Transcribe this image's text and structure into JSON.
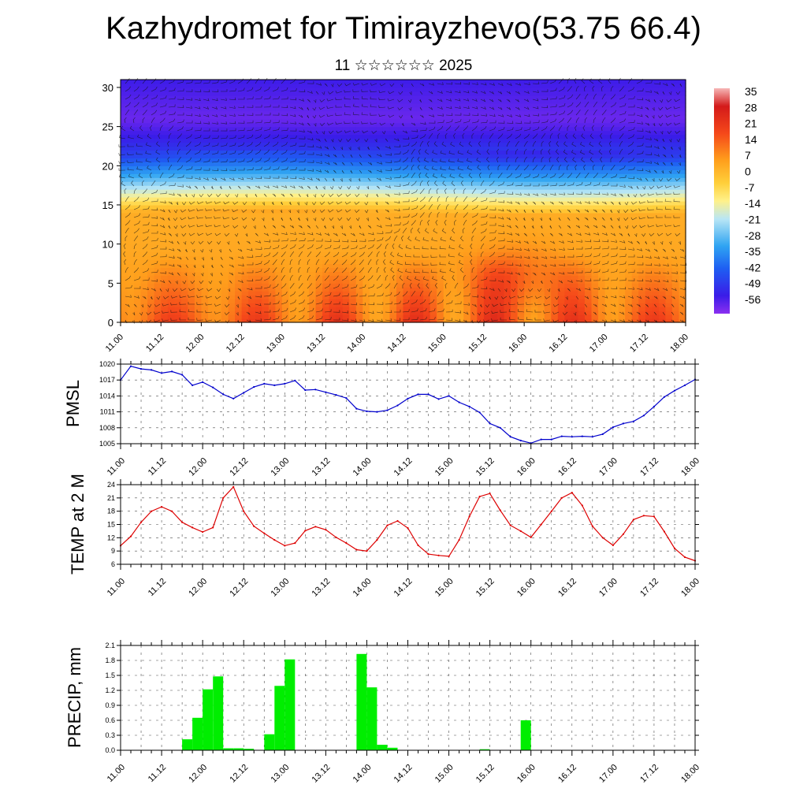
{
  "title": "Kazhydromet for Timirayzhevo(53.75 66.4)",
  "subtitle": "11 ☆☆☆☆☆☆ 2025",
  "time_labels": [
    "11.00",
    "11.12",
    "12.00",
    "12.12",
    "13.00",
    "13.12",
    "14.00",
    "14.12",
    "15.00",
    "15.12",
    "16.00",
    "16.12",
    "17.00",
    "17.12",
    "18.00"
  ],
  "chart_data": [
    {
      "type": "heatmap",
      "title": "",
      "ylim": [
        0,
        31
      ],
      "y_ticks": [
        "0",
        "5",
        "10",
        "15",
        "20",
        "25",
        "30"
      ],
      "x_ticks": [
        "11.00",
        "11.12",
        "12.00",
        "12.12",
        "13.00",
        "13.12",
        "14.00",
        "14.12",
        "15.00",
        "15.12",
        "16.00",
        "16.12",
        "17.00",
        "17.12",
        "18.00"
      ],
      "colorbar": {
        "labels": [
          "35",
          "28",
          "21",
          "14",
          "7",
          "0",
          "-7",
          "-14",
          "-21",
          "-28",
          "-35",
          "-42",
          "-49",
          "-56"
        ],
        "range": [
          -60,
          38
        ]
      },
      "overlay": "wind barbs"
    },
    {
      "type": "line",
      "ylabel": "PMSL",
      "ylim": [
        1005,
        1020
      ],
      "y_ticks": [
        "1005",
        "1008",
        "1011",
        "1014",
        "1017",
        "1020"
      ],
      "color": "#0000cc",
      "x": [
        0,
        1,
        2,
        3,
        4,
        5,
        6,
        7,
        8,
        9,
        10,
        11,
        12,
        13,
        14,
        15,
        16,
        17,
        18,
        19,
        20,
        21,
        22,
        23,
        24,
        25,
        26,
        27,
        28,
        29,
        30,
        31,
        32,
        33,
        34,
        35,
        36,
        37,
        38,
        39,
        40,
        41,
        42,
        43,
        44,
        45,
        46,
        47,
        48,
        49,
        50,
        51,
        52,
        53,
        54,
        55,
        56
      ],
      "values": [
        1017.0,
        1019.6,
        1019.1,
        1018.9,
        1018.3,
        1018.6,
        1018.0,
        1016.0,
        1016.6,
        1015.6,
        1014.3,
        1013.5,
        1014.6,
        1015.7,
        1016.3,
        1016.0,
        1016.3,
        1016.9,
        1015.1,
        1015.2,
        1014.7,
        1014.2,
        1013.6,
        1011.6,
        1011.1,
        1011.0,
        1011.3,
        1012.2,
        1013.5,
        1014.3,
        1014.3,
        1013.4,
        1014.0,
        1012.8,
        1012.0,
        1010.9,
        1008.8,
        1008.0,
        1006.3,
        1005.6,
        1005.1,
        1005.8,
        1005.8,
        1006.4,
        1006.3,
        1006.4,
        1006.3,
        1006.8,
        1008.1,
        1008.8,
        1009.2,
        1010.3,
        1012.0,
        1013.8,
        1015.0,
        1016.0,
        1017.1
      ]
    },
    {
      "type": "line",
      "ylabel": "TEMP at 2 M",
      "ylim": [
        6,
        24
      ],
      "y_ticks": [
        "6",
        "9",
        "12",
        "15",
        "18",
        "21",
        "24"
      ],
      "color": "#dd0000",
      "x": [
        0,
        1,
        2,
        3,
        4,
        5,
        6,
        7,
        8,
        9,
        10,
        11,
        12,
        13,
        14,
        15,
        16,
        17,
        18,
        19,
        20,
        21,
        22,
        23,
        24,
        25,
        26,
        27,
        28,
        29,
        30,
        31,
        32,
        33,
        34,
        35,
        36,
        37,
        38,
        39,
        40,
        41,
        42,
        43,
        44,
        45,
        46,
        47,
        48,
        49,
        50,
        51,
        52,
        53,
        54,
        55,
        56
      ],
      "values": [
        10.2,
        12.3,
        15.5,
        18.0,
        19.0,
        18.0,
        15.5,
        14.3,
        13.3,
        14.3,
        21.0,
        23.5,
        18.0,
        14.6,
        13.0,
        11.5,
        10.2,
        10.8,
        13.6,
        14.5,
        13.8,
        12.1,
        10.8,
        9.3,
        9.0,
        11.5,
        14.8,
        15.8,
        14.2,
        10.3,
        8.3,
        8.0,
        7.8,
        11.5,
        16.8,
        21.3,
        22.0,
        18.2,
        14.8,
        13.5,
        12.1,
        15.0,
        18.0,
        21.0,
        22.2,
        19.3,
        14.6,
        12.0,
        10.3,
        12.8,
        16.1,
        17.0,
        16.8,
        13.4,
        9.6,
        7.6,
        6.8
      ]
    },
    {
      "type": "bar",
      "ylabel": "PRECIP, mm",
      "ylim": [
        0,
        2.1
      ],
      "y_ticks": [
        "0.0",
        "0.3",
        "0.6",
        "0.9",
        "1.2",
        "1.5",
        "1.8",
        "2.1"
      ],
      "color": "#00ee00",
      "x": [
        6,
        7,
        8,
        9,
        10,
        11,
        12,
        14,
        15,
        16,
        23,
        24,
        25,
        26,
        35,
        39
      ],
      "values": [
        0.22,
        0.65,
        1.22,
        1.48,
        0.04,
        0.04,
        0.03,
        0.32,
        1.29,
        1.82,
        1.93,
        1.26,
        0.11,
        0.05,
        0.02,
        0.6
      ]
    }
  ]
}
